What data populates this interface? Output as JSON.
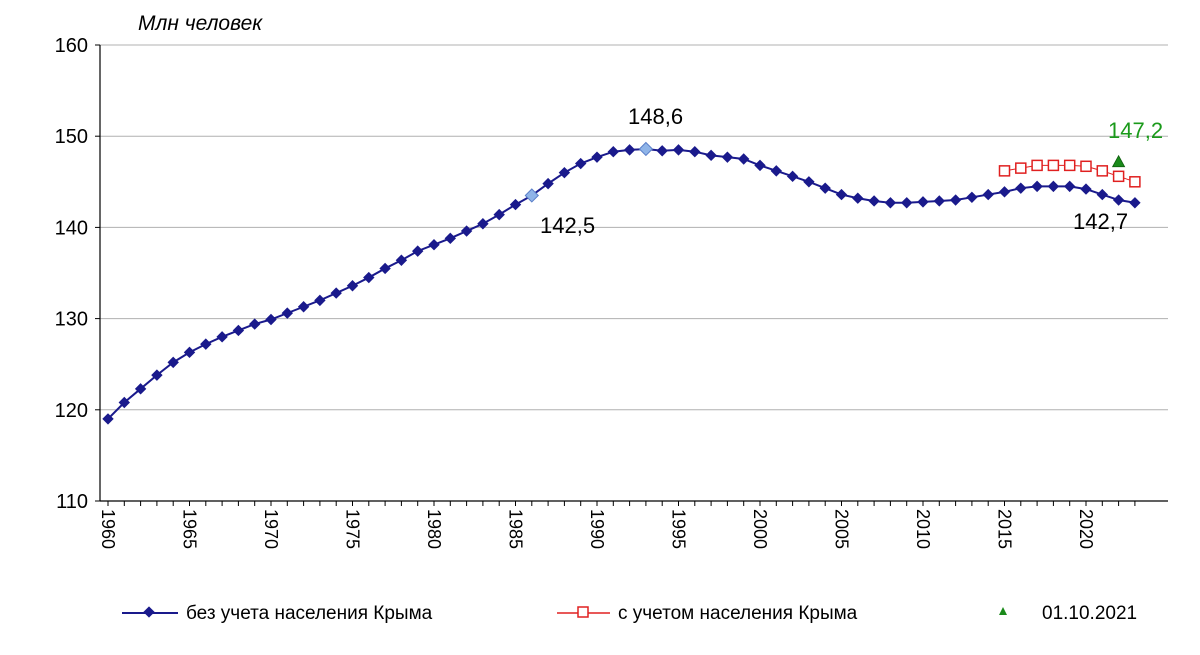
{
  "chart_data": {
    "type": "line",
    "ylabel": "Млн человек",
    "xlabel": "",
    "ylim": [
      110,
      160
    ],
    "yticks": [
      110,
      120,
      130,
      140,
      150,
      160
    ],
    "xlim": [
      1960,
      2023
    ],
    "xticks": [
      "1960",
      "1965",
      "1970",
      "1975",
      "1980",
      "1985",
      "1990",
      "1995",
      "2000",
      "2005",
      "2010",
      "2015",
      "2020"
    ],
    "grid": "horizontal",
    "legend_position": "bottom",
    "colors": {
      "series1": "#1a1a8c",
      "series1_highlight": "#8fb4e8",
      "series2": "#e02020",
      "series3": "#1a8a1a"
    },
    "series": [
      {
        "name": "без учета населения Крыма",
        "x": [
          1960,
          1961,
          1962,
          1963,
          1964,
          1965,
          1966,
          1967,
          1968,
          1969,
          1970,
          1971,
          1972,
          1973,
          1974,
          1975,
          1976,
          1977,
          1978,
          1979,
          1980,
          1981,
          1982,
          1983,
          1984,
          1985,
          1986,
          1987,
          1988,
          1989,
          1990,
          1991,
          1992,
          1993,
          1994,
          1995,
          1996,
          1997,
          1998,
          1999,
          2000,
          2001,
          2002,
          2003,
          2004,
          2005,
          2006,
          2007,
          2008,
          2009,
          2010,
          2011,
          2012,
          2013,
          2014,
          2015,
          2016,
          2017,
          2018,
          2019,
          2020,
          2021,
          2022,
          2023
        ],
        "values": [
          119.0,
          120.8,
          122.3,
          123.8,
          125.2,
          126.3,
          127.2,
          128.0,
          128.7,
          129.4,
          129.9,
          130.6,
          131.3,
          132.0,
          132.8,
          133.6,
          134.5,
          135.5,
          136.4,
          137.4,
          138.1,
          138.8,
          139.6,
          140.4,
          141.4,
          142.5,
          143.5,
          144.8,
          146.0,
          147.0,
          147.7,
          148.3,
          148.5,
          148.6,
          148.4,
          148.5,
          148.3,
          147.9,
          147.7,
          147.5,
          146.8,
          146.2,
          145.6,
          145.0,
          144.3,
          143.6,
          143.2,
          142.9,
          142.7,
          142.7,
          142.8,
          142.9,
          143.0,
          143.3,
          143.6,
          143.9,
          144.3,
          144.5,
          144.5,
          144.5,
          144.2,
          143.6,
          143.0,
          142.7
        ]
      },
      {
        "name": "с учетом населения Крыма",
        "x": [
          2015,
          2016,
          2017,
          2018,
          2019,
          2020,
          2021,
          2022,
          2023
        ],
        "values": [
          146.2,
          146.5,
          146.8,
          146.8,
          146.8,
          146.7,
          146.2,
          145.6,
          145.0
        ]
      },
      {
        "name": "01.10.2021",
        "x": [
          2022
        ],
        "values": [
          147.2
        ]
      }
    ],
    "highlighted_points": [
      {
        "x": 1986,
        "y": 143.5
      },
      {
        "x": 1993,
        "y": 148.6
      }
    ],
    "annotations": [
      {
        "text": "148,6",
        "color": "#000000"
      },
      {
        "text": "142,5",
        "color": "#000000"
      },
      {
        "text": "142,7",
        "color": "#000000"
      },
      {
        "text": "147,2",
        "color": "#1a9a1a"
      }
    ]
  }
}
